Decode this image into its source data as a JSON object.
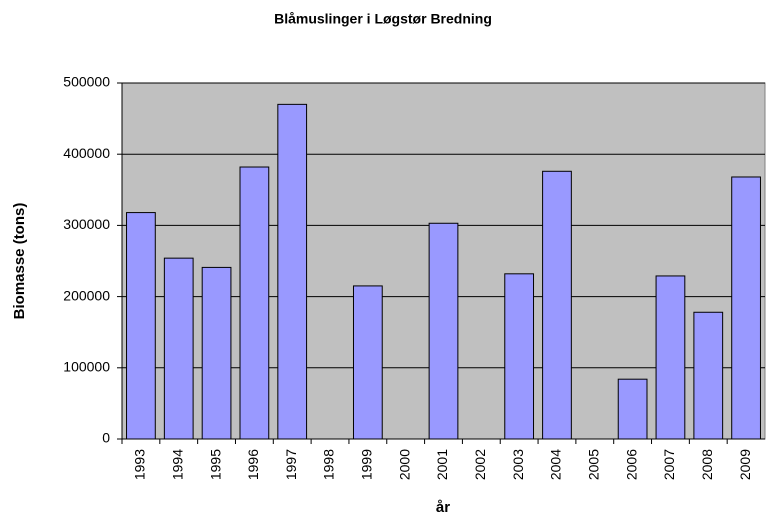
{
  "chart_data": {
    "type": "bar",
    "title": "Blåmuslinger i Løgstør Bredning",
    "x_label": "år",
    "y_label": "Biomasse (tons)",
    "categories": [
      "1993",
      "1994",
      "1995",
      "1996",
      "1997",
      "1998",
      "1999",
      "2000",
      "2001",
      "2002",
      "2003",
      "2004",
      "2005",
      "2006",
      "2007",
      "2008",
      "2009"
    ],
    "values": [
      318000,
      254000,
      241000,
      382000,
      470000,
      null,
      215000,
      null,
      303000,
      null,
      232000,
      376000,
      null,
      84000,
      229000,
      178000,
      368000
    ],
    "color": "#9999ff",
    "ylim": [
      0,
      500000
    ],
    "yticks": [
      0,
      100000,
      200000,
      300000,
      400000,
      500000
    ],
    "grid": true
  }
}
